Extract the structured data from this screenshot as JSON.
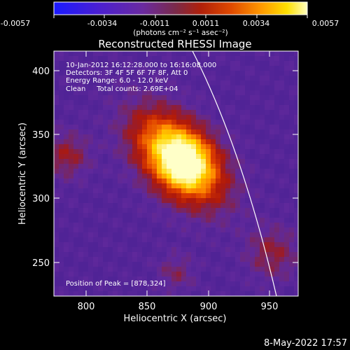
{
  "colorbar": {
    "tick_labels": [
      "-0.0057",
      "-0.0034",
      "-0.0011",
      "0.0011",
      "0.0034",
      "0.0057"
    ],
    "units_label": "(photons cm⁻² s⁻¹ asec⁻²)",
    "min": -0.0057,
    "max": 0.0057,
    "colors": [
      "#1a1aff",
      "#4b1fd0",
      "#6a2aa0",
      "#7a2a4a",
      "#b0200a",
      "#e04a00",
      "#ff9a00",
      "#ffe000",
      "#ffffc0"
    ]
  },
  "plot": {
    "title": "Reconstructed RHESSI Image",
    "xlabel": "Heliocentric X (arcsec)",
    "ylabel": "Heliocentric Y (arcsec)",
    "xlim": [
      775,
      965
    ],
    "ylim": [
      222,
      410
    ],
    "xticks": [
      "800",
      "850",
      "900",
      "950"
    ],
    "yticks": [
      "250",
      "300",
      "350",
      "400"
    ],
    "info_lines": [
      "10-Jan-2012 16:12:28.000 to 16:16:08.000",
      "Detectors: 3F 4F 5F 6F 7F 8F, Att 0",
      "Energy Range: 6.0 - 12.0 keV",
      "Clean     Total counts: 2.69E+04"
    ],
    "peak_label": "Position of Peak = [878,324]",
    "peak": [
      878,
      324
    ]
  },
  "footer": {
    "timestamp": "8-May-2022 17:57"
  }
}
